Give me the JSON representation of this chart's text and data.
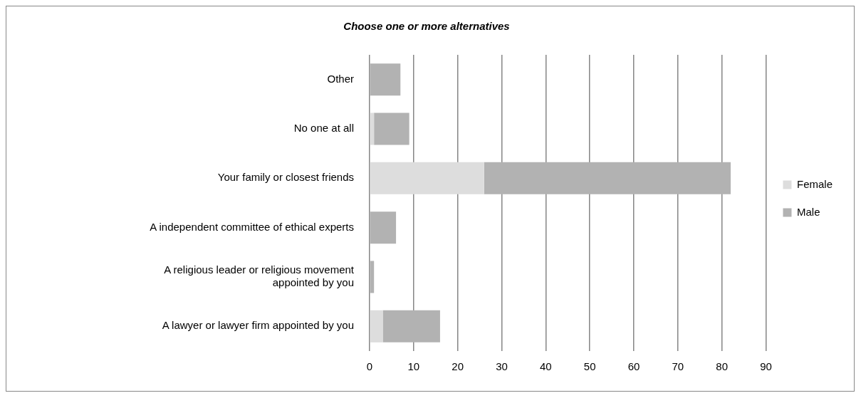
{
  "chart_data": {
    "type": "bar",
    "orientation": "horizontal",
    "stacked": true,
    "title": "Choose one or more alternatives",
    "categories": [
      "Other",
      "No one at all",
      "Your family or closest friends",
      "A independent committee of ethical experts",
      "A religious leader or religious movement appointed by you",
      "A lawyer or lawyer firm appointed by you"
    ],
    "series": [
      {
        "name": "Female",
        "color": "#dddddd",
        "values": [
          0,
          1,
          26,
          0,
          0,
          3
        ]
      },
      {
        "name": "Male",
        "color": "#b2b2b2",
        "values": [
          7,
          8,
          56,
          6,
          1,
          13
        ]
      }
    ],
    "xlim": [
      0,
      90
    ],
    "xticks": [
      0,
      10,
      20,
      30,
      40,
      50,
      60,
      70,
      80,
      90
    ],
    "grid": "x",
    "legend": "right"
  }
}
